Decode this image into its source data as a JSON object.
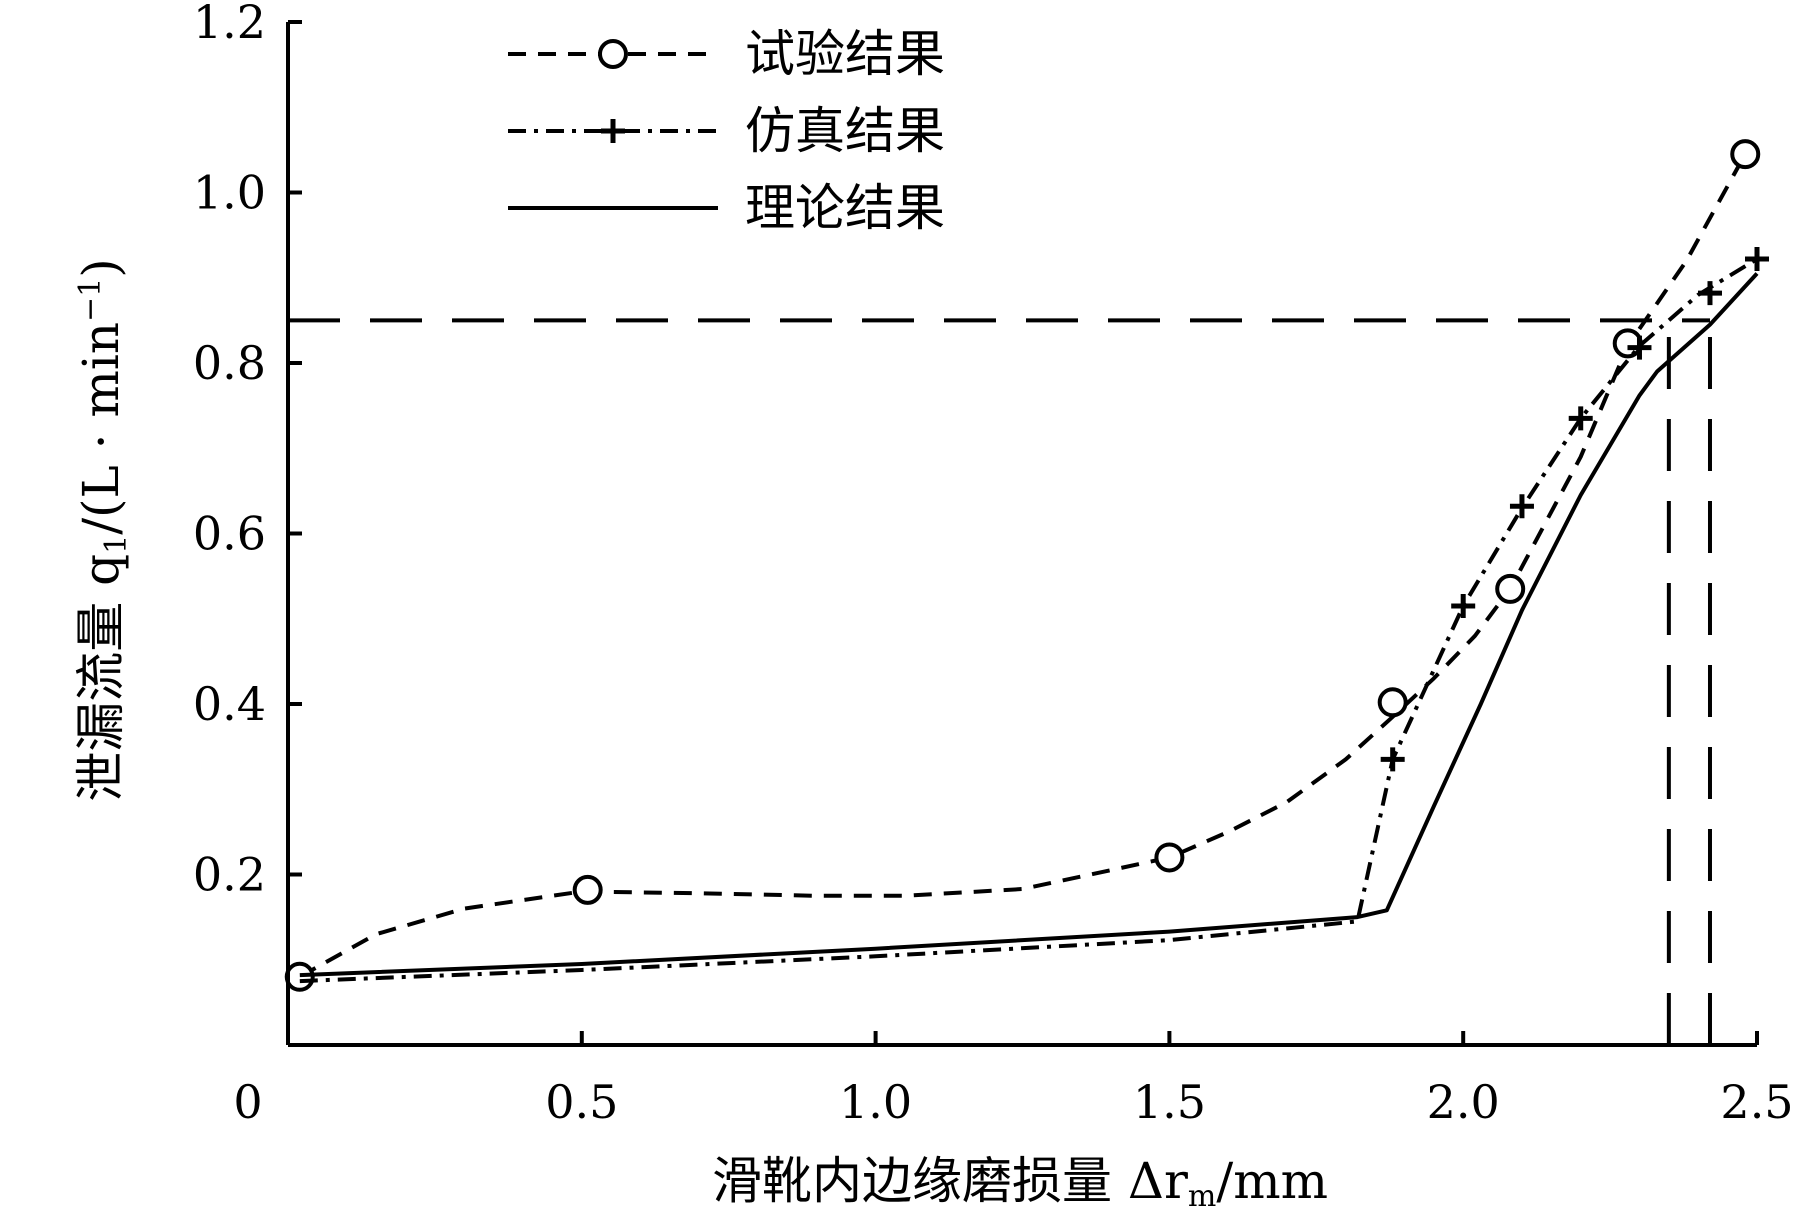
{
  "chart_data": {
    "type": "line",
    "xlabel": "滑靴内边缘磨损量 Δr",
    "xlabel_sub": "m",
    "xlabel_unit": "/mm",
    "ylabel": "泄漏流量 q",
    "ylabel_sub": "1",
    "ylabel_unit": "/(L · min",
    "ylabel_sup": "−1",
    "ylabel_close": ")",
    "xlim": [
      0,
      2.5
    ],
    "ylim": [
      0,
      1.2
    ],
    "xticks": [
      {
        "value": 0,
        "label": "0"
      },
      {
        "value": 0.5,
        "label": "0.5"
      },
      {
        "value": 1.0,
        "label": "1.0"
      },
      {
        "value": 1.5,
        "label": "1.5"
      },
      {
        "value": 2.0,
        "label": "2.0"
      },
      {
        "value": 2.5,
        "label": "2.5"
      }
    ],
    "yticks": [
      {
        "value": 0.2,
        "label": "0.2"
      },
      {
        "value": 0.4,
        "label": "0.4"
      },
      {
        "value": 0.6,
        "label": "0.6"
      },
      {
        "value": 0.8,
        "label": "0.8"
      },
      {
        "value": 1.0,
        "label": "1.0"
      },
      {
        "value": 1.2,
        "label": "1.2"
      }
    ],
    "legend_position": "top-left",
    "grid": false,
    "series": [
      {
        "name": "试验结果",
        "line_style": "dashed",
        "marker": "circle",
        "curve": [
          [
            0.02,
            0.08
          ],
          [
            0.15,
            0.13
          ],
          [
            0.3,
            0.16
          ],
          [
            0.5,
            0.18
          ],
          [
            0.7,
            0.178
          ],
          [
            0.9,
            0.175
          ],
          [
            1.05,
            0.175
          ],
          [
            1.25,
            0.183
          ],
          [
            1.4,
            0.205
          ],
          [
            1.5,
            0.22
          ],
          [
            1.6,
            0.25
          ],
          [
            1.7,
            0.285
          ],
          [
            1.8,
            0.335
          ],
          [
            1.88,
            0.385
          ],
          [
            1.95,
            0.43
          ],
          [
            2.02,
            0.48
          ],
          [
            2.08,
            0.535
          ],
          [
            2.2,
            0.69
          ],
          [
            2.28,
            0.82
          ],
          [
            2.38,
            0.92
          ],
          [
            2.48,
            1.045
          ]
        ],
        "markers": [
          [
            0.02,
            0.08
          ],
          [
            0.51,
            0.182
          ],
          [
            1.5,
            0.22
          ],
          [
            1.88,
            0.402
          ],
          [
            2.08,
            0.535
          ],
          [
            2.28,
            0.823
          ],
          [
            2.48,
            1.045
          ]
        ]
      },
      {
        "name": "仿真结果",
        "line_style": "dash-dot",
        "marker": "plus",
        "curve": [
          [
            0.02,
            0.075
          ],
          [
            0.5,
            0.088
          ],
          [
            1.0,
            0.104
          ],
          [
            1.5,
            0.123
          ],
          [
            1.82,
            0.145
          ],
          [
            1.88,
            0.335
          ],
          [
            2.0,
            0.515
          ],
          [
            2.1,
            0.63
          ],
          [
            2.2,
            0.735
          ],
          [
            2.3,
            0.82
          ],
          [
            2.4,
            0.88
          ],
          [
            2.5,
            0.922
          ]
        ],
        "markers": [
          [
            1.88,
            0.335
          ],
          [
            2.0,
            0.515
          ],
          [
            2.1,
            0.632
          ],
          [
            2.2,
            0.735
          ],
          [
            2.3,
            0.818
          ],
          [
            2.42,
            0.882
          ],
          [
            2.5,
            0.922
          ]
        ]
      },
      {
        "name": "理论结果",
        "line_style": "solid",
        "marker": "none",
        "curve": [
          [
            0.02,
            0.082
          ],
          [
            0.5,
            0.095
          ],
          [
            1.0,
            0.113
          ],
          [
            1.5,
            0.133
          ],
          [
            1.82,
            0.15
          ],
          [
            1.87,
            0.158
          ],
          [
            1.95,
            0.28
          ],
          [
            2.03,
            0.4
          ],
          [
            2.1,
            0.51
          ],
          [
            2.2,
            0.645
          ],
          [
            2.3,
            0.762
          ],
          [
            2.33,
            0.79
          ],
          [
            2.42,
            0.845
          ],
          [
            2.5,
            0.905
          ]
        ]
      }
    ],
    "reference_lines": [
      {
        "orientation": "horizontal",
        "y": 0.85,
        "x_from": 0,
        "x_to": 2.42
      },
      {
        "orientation": "vertical",
        "x": 2.35,
        "y_from": 0,
        "y_to": 0.85
      },
      {
        "orientation": "vertical",
        "x": 2.42,
        "y_from": 0,
        "y_to": 0.85
      }
    ]
  }
}
